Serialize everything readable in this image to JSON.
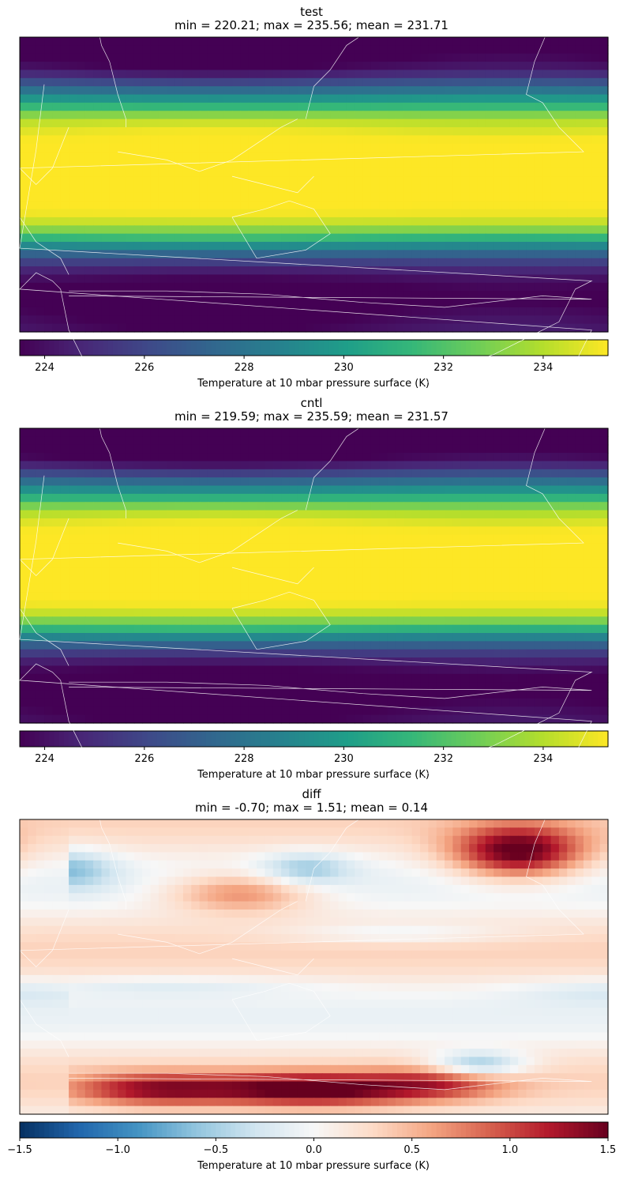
{
  "chart_data": [
    {
      "type": "heatmap",
      "title": "test",
      "subtitle": "min = 220.21; max = 235.56; mean = 231.71",
      "colormap": "viridis",
      "colorbar_label": "Temperature at 10 mbar pressure surface (K)",
      "clim": [
        223.5,
        235.3
      ],
      "colorbar_ticks": [
        "224",
        "226",
        "228",
        "230",
        "232",
        "234"
      ],
      "colorbar_tick_values": [
        224,
        226,
        228,
        230,
        232,
        234
      ],
      "stats": {
        "min": 220.21,
        "max": 235.56,
        "mean": 231.71
      },
      "lat_profile": [
        [
          90,
          220.5
        ],
        [
          80,
          223.0
        ],
        [
          70,
          224.0
        ],
        [
          60,
          227.0
        ],
        [
          50,
          230.5
        ],
        [
          40,
          234.0
        ],
        [
          30,
          235.2
        ],
        [
          20,
          235.4
        ],
        [
          10,
          235.5
        ],
        [
          0,
          235.5
        ],
        [
          -10,
          235.4
        ],
        [
          -20,
          235.0
        ],
        [
          -30,
          232.5
        ],
        [
          -40,
          228.0
        ],
        [
          -50,
          225.0
        ],
        [
          -60,
          223.5
        ],
        [
          -70,
          223.0
        ],
        [
          -80,
          223.5
        ],
        [
          -90,
          224.0
        ]
      ]
    },
    {
      "type": "heatmap",
      "title": "cntl",
      "subtitle": "min = 219.59; max = 235.59; mean = 231.57",
      "colormap": "viridis",
      "colorbar_label": "Temperature at 10 mbar pressure surface (K)",
      "clim": [
        223.5,
        235.3
      ],
      "colorbar_ticks": [
        "224",
        "226",
        "228",
        "230",
        "232",
        "234"
      ],
      "colorbar_tick_values": [
        224,
        226,
        228,
        230,
        232,
        234
      ],
      "stats": {
        "min": 219.59,
        "max": 235.59,
        "mean": 231.57
      },
      "lat_profile": [
        [
          90,
          220.0
        ],
        [
          80,
          222.5
        ],
        [
          70,
          223.8
        ],
        [
          60,
          226.8
        ],
        [
          50,
          230.2
        ],
        [
          40,
          233.8
        ],
        [
          30,
          235.2
        ],
        [
          20,
          235.4
        ],
        [
          10,
          235.5
        ],
        [
          0,
          235.5
        ],
        [
          -10,
          235.4
        ],
        [
          -20,
          235.0
        ],
        [
          -30,
          232.3
        ],
        [
          -40,
          227.8
        ],
        [
          -50,
          224.8
        ],
        [
          -60,
          223.3
        ],
        [
          -70,
          222.8
        ],
        [
          -80,
          223.3
        ],
        [
          -90,
          223.8
        ]
      ]
    },
    {
      "type": "heatmap",
      "title": "diff",
      "subtitle": "min = -0.70; max = 1.51; mean = 0.14",
      "colormap": "RdBu_r",
      "colorbar_label": "Temperature at 10 mbar pressure surface (K)",
      "clim": [
        -1.5,
        1.5
      ],
      "colorbar_ticks": [
        "−1.5",
        "−1.0",
        "−0.5",
        "0.0",
        "0.5",
        "1.0",
        "1.5"
      ],
      "colorbar_tick_values": [
        -1.5,
        -1.0,
        -0.5,
        0.0,
        0.5,
        1.0,
        1.5
      ],
      "stats": {
        "min": -0.7,
        "max": 1.51,
        "mean": 0.14
      }
    }
  ]
}
